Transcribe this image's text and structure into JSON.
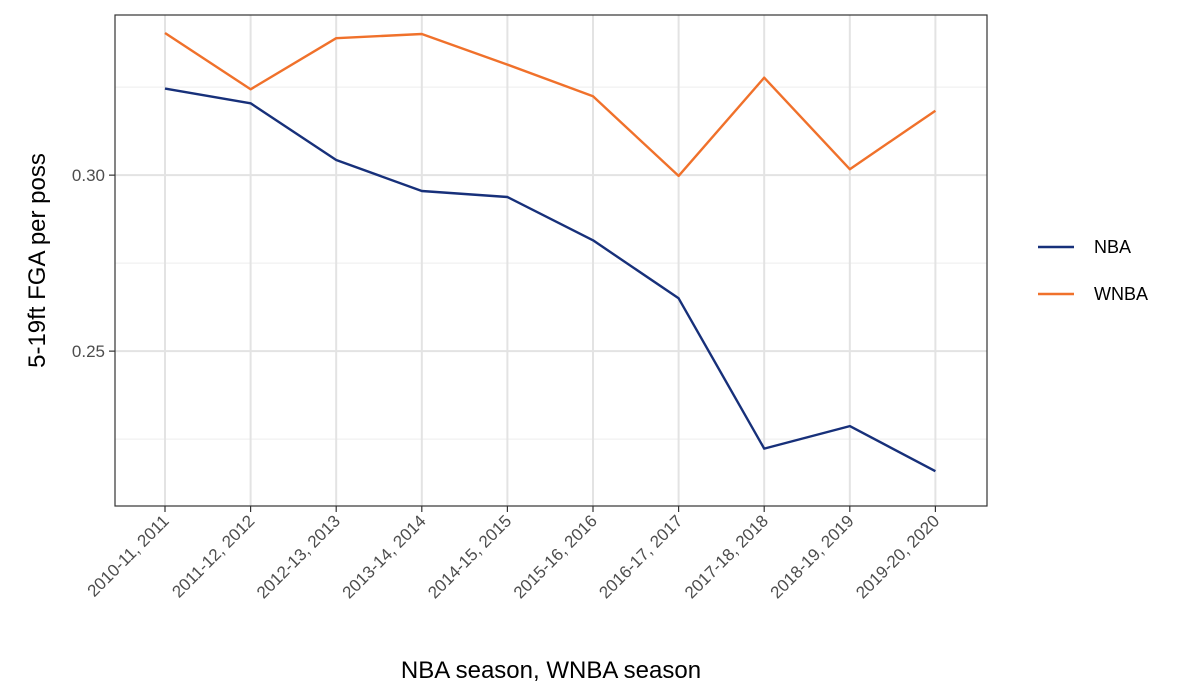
{
  "chart_data": {
    "type": "line",
    "title": "",
    "xlabel": "NBA season, WNBA season",
    "ylabel": "5-19ft FGA per poss",
    "categories": [
      "2010-11, 2011",
      "2011-12, 2012",
      "2012-13, 2013",
      "2013-14, 2014",
      "2014-15, 2015",
      "2015-16, 2016",
      "2016-17, 2017",
      "2017-18, 2018",
      "2018-19, 2019",
      "2019-20, 2020"
    ],
    "series": [
      {
        "name": "NBA",
        "color": "#17307a",
        "values": [
          0.3246,
          0.3204,
          0.3043,
          0.2955,
          0.2938,
          0.2815,
          0.265,
          0.2223,
          0.2287,
          0.2159
        ]
      },
      {
        "name": "WNBA",
        "color": "#f0712b",
        "values": [
          0.3404,
          0.3244,
          0.3389,
          0.3401,
          0.3314,
          0.3224,
          0.2998,
          0.3277,
          0.3017,
          0.3183
        ]
      }
    ],
    "ylim": [
      0.206,
      0.3455
    ],
    "yticks": [
      0.25,
      0.3
    ],
    "ytick_labels": [
      "0.25",
      "0.30"
    ],
    "grid": true,
    "legend_position": "right"
  }
}
